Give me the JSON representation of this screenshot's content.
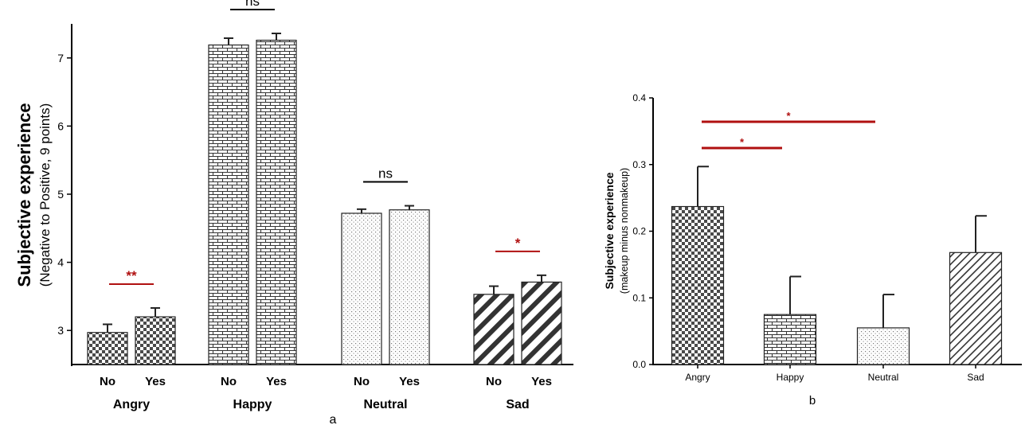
{
  "chart_data": [
    {
      "type": "bar",
      "panel_label": "a",
      "ylabel": "Subjective experience",
      "ylabel_sub": "(Negative to Positive, 9 points)",
      "ylim": [
        2.5,
        7.5
      ],
      "yticks": [
        3,
        4,
        5,
        6,
        7
      ],
      "groups": [
        "Angry",
        "Happy",
        "Neutral",
        "Sad"
      ],
      "conditions": [
        "No",
        "Yes"
      ],
      "values": [
        [
          2.97,
          3.2
        ],
        [
          7.19,
          7.26
        ],
        [
          4.72,
          4.77
        ],
        [
          3.53,
          3.71
        ]
      ],
      "errors": [
        [
          0.12,
          0.13
        ],
        [
          0.1,
          0.1
        ],
        [
          0.06,
          0.06
        ],
        [
          0.12,
          0.1
        ]
      ],
      "patterns": [
        "checker",
        "brick",
        "dots",
        "diagonal"
      ],
      "annotations": [
        {
          "group": "Angry",
          "text": "**",
          "color": "#b01010"
        },
        {
          "group": "Happy",
          "text": "ns",
          "color": "#000000"
        },
        {
          "group": "Neutral",
          "text": "ns",
          "color": "#000000"
        },
        {
          "group": "Sad",
          "text": "*",
          "color": "#b01010"
        }
      ],
      "grid": false
    },
    {
      "type": "bar",
      "panel_label": "b",
      "ylabel": "Subjective experience",
      "ylabel_sub": "(makeup minus nonmakeup)",
      "ylim": [
        0,
        0.4
      ],
      "yticks": [
        0.0,
        0.1,
        0.2,
        0.3,
        0.4
      ],
      "categories": [
        "Angry",
        "Happy",
        "Neutral",
        "Sad"
      ],
      "values": [
        0.237,
        0.075,
        0.055,
        0.168
      ],
      "errors": [
        0.06,
        0.057,
        0.05,
        0.055
      ],
      "patterns": [
        "checker",
        "brick",
        "dots",
        "diagonal"
      ],
      "annotations": [
        {
          "from": "Angry",
          "to": "Happy",
          "text": "*",
          "color": "#b01010"
        },
        {
          "from": "Angry",
          "to": "Neutral",
          "text": "*",
          "color": "#b01010"
        }
      ],
      "grid": false
    }
  ]
}
